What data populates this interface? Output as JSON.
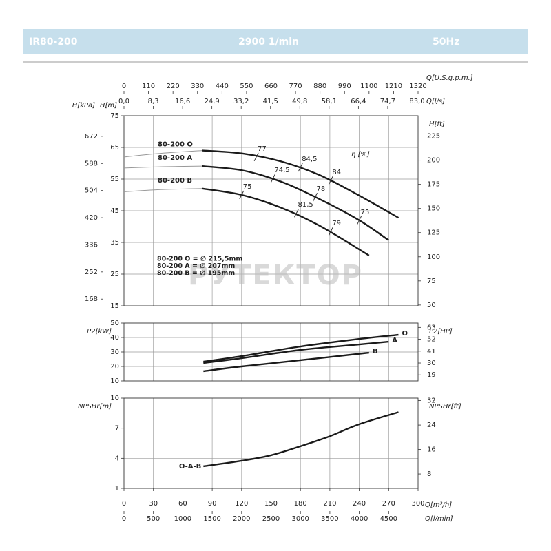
{
  "header": {
    "model": "IR80-200",
    "speed": "2900 1/min",
    "frequency": "50Hz"
  },
  "chart_data": [
    {
      "type": "line",
      "ylabel": "H[m]",
      "xlim": [
        0,
        300
      ],
      "ylim": [
        15,
        75
      ],
      "yticks": [
        15,
        25,
        35,
        45,
        55,
        65,
        75
      ],
      "grid": true,
      "faint_until_x": 80,
      "name_position": "start",
      "extra_axes": [
        {
          "side": "top",
          "label": "Q[U.S.g.p.m.]",
          "lim": [
            0,
            1320
          ],
          "ticks": [
            0,
            110,
            220,
            330,
            440,
            550,
            660,
            770,
            880,
            990,
            1100,
            1210,
            1320
          ]
        },
        {
          "side": "top",
          "label": "Q[l/s]",
          "lim": [
            0,
            83.3
          ],
          "ticks": [
            {
              "value": 0,
              "label": "0,0"
            },
            {
              "value": 8.3,
              "label": "8,3"
            },
            {
              "value": 16.6,
              "label": "16,6"
            },
            {
              "value": 24.9,
              "label": "24,9"
            },
            {
              "value": 33.2,
              "label": "33,2"
            },
            {
              "value": 41.5,
              "label": "41,5"
            },
            {
              "value": 49.8,
              "label": "49,8"
            },
            {
              "value": 58.1,
              "label": "58,1"
            },
            {
              "value": 66.4,
              "label": "66,4"
            },
            {
              "value": 74.7,
              "label": "74,7"
            },
            {
              "value": 83.0,
              "label": "83,0"
            }
          ]
        },
        {
          "side": "left",
          "label": "H[kPa]",
          "lim": [
            147.15,
            735.75
          ],
          "ticks": [
            168,
            252,
            336,
            420,
            504,
            588,
            672
          ]
        },
        {
          "side": "right",
          "label": "H[ft]",
          "lim": [
            49.2,
            246.1
          ],
          "ticks": [
            50,
            75,
            100,
            125,
            150,
            175,
            200,
            225
          ]
        }
      ],
      "series": [
        {
          "name": "80-200 O",
          "color": "#1a1a1a",
          "x": [
            0,
            40,
            80,
            120,
            160,
            200,
            240,
            280
          ],
          "values": [
            62,
            63.2,
            64,
            63.1,
            60.6,
            56.2,
            49.8,
            42.8
          ]
        },
        {
          "name": "80-200 A",
          "color": "#1a1a1a",
          "x": [
            0,
            40,
            80,
            120,
            160,
            200,
            240,
            270
          ],
          "values": [
            58.5,
            58.9,
            59.1,
            57.8,
            54.2,
            48.6,
            42,
            35.7
          ]
        },
        {
          "name": "80-200 B",
          "color": "#1a1a1a",
          "x": [
            0,
            40,
            80,
            120,
            160,
            200,
            250
          ],
          "values": [
            51,
            51.7,
            52,
            50,
            46,
            40.2,
            30.9
          ]
        }
      ],
      "efficiency_label": "η [%]",
      "efficiency_marks": [
        {
          "value": 77,
          "x": 135,
          "y": 62
        },
        {
          "value": 84.5,
          "label": "84,5",
          "x": 180,
          "y": 58.7
        },
        {
          "value": 84,
          "x": 211,
          "y": 54.6
        },
        {
          "value": 74.5,
          "label": "74,5",
          "x": 152,
          "y": 55.2
        },
        {
          "value": 78,
          "x": 195,
          "y": 49.3
        },
        {
          "value": 75,
          "x": 240,
          "y": 42
        },
        {
          "value": 75,
          "x": 120,
          "y": 50
        },
        {
          "value": 81.5,
          "label": "81,5",
          "x": 176,
          "y": 44.3
        },
        {
          "value": 79,
          "x": 211,
          "y": 38.5
        }
      ],
      "diameters": [
        "80-200 O = ∅ 215,5mm",
        "80-200 A = ∅ 207mm",
        "80-200 B = ∅ 195mm"
      ],
      "watermark": "РУТЕКТОР"
    },
    {
      "type": "line",
      "ylabel": "P2[kW]",
      "xlim": [
        0,
        300
      ],
      "ylim": [
        10,
        50
      ],
      "yticks": [
        10,
        20,
        30,
        40,
        50
      ],
      "grid": true,
      "name_position": "end",
      "extra_axes": [
        {
          "side": "right",
          "label": "P2[HP]",
          "lim": [
            13.41,
            67.05
          ],
          "ticks": [
            19,
            30,
            41,
            52,
            63
          ]
        }
      ],
      "series": [
        {
          "name": "O",
          "color": "#1a1a1a",
          "x": [
            81,
            120,
            180,
            240,
            280
          ],
          "values": [
            23.3,
            27.1,
            33.8,
            39,
            41.9
          ]
        },
        {
          "name": "A",
          "color": "#1a1a1a",
          "x": [
            81,
            120,
            180,
            240,
            270
          ],
          "values": [
            22.4,
            25.7,
            31.4,
            35.2,
            37.1
          ]
        },
        {
          "name": "B",
          "color": "#1a1a1a",
          "x": [
            81,
            120,
            180,
            250
          ],
          "values": [
            16.7,
            20,
            24.3,
            29.5
          ]
        }
      ]
    },
    {
      "type": "line",
      "ylabel": "NPSHr[m]",
      "xlabel": "Q[m³/h]",
      "xlim": [
        0,
        300
      ],
      "xticks": [
        0,
        30,
        60,
        90,
        120,
        150,
        180,
        210,
        240,
        270,
        300
      ],
      "ylim": [
        1,
        10
      ],
      "yticks": [
        1,
        4,
        7,
        10
      ],
      "grid": true,
      "name_position": "start",
      "extra_axes": [
        {
          "side": "right",
          "label": "NPSHr[ft]",
          "lim": [
            3.28,
            32.81
          ],
          "ticks": [
            8,
            16,
            24,
            32
          ]
        },
        {
          "side": "bottom",
          "label": "Q[l/min]",
          "lim": [
            0,
            5000
          ],
          "ticks": [
            0,
            500,
            1000,
            1500,
            2000,
            2500,
            3000,
            3500,
            4000,
            4500
          ]
        }
      ],
      "series": [
        {
          "name": "O-A-B",
          "color": "#1a1a1a",
          "x": [
            81,
            120,
            150,
            180,
            210,
            240,
            280
          ],
          "values": [
            3.2,
            3.75,
            4.3,
            5.2,
            6.2,
            7.4,
            8.6
          ]
        }
      ]
    }
  ]
}
